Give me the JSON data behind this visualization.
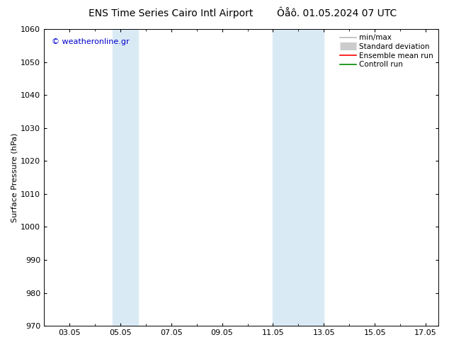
{
  "title_left": "ENS Time Series Cairo Intl Airport",
  "title_right": "Ôåô. 01.05.2024 07 UTC",
  "ylabel": "Surface Pressure (hPa)",
  "ylim": [
    970,
    1060
  ],
  "yticks": [
    970,
    980,
    990,
    1000,
    1010,
    1020,
    1030,
    1040,
    1050,
    1060
  ],
  "x_min": 2.0,
  "x_max": 17.5,
  "xtick_labels": [
    "03.05",
    "05.05",
    "07.05",
    "09.05",
    "11.05",
    "13.05",
    "15.05",
    "17.05"
  ],
  "xtick_positions_day": [
    3,
    5,
    7,
    9,
    11,
    13,
    15,
    17
  ],
  "shade_bands": [
    {
      "start_day": 4.7,
      "end_day": 5.7
    },
    {
      "start_day": 11.0,
      "end_day": 13.0
    }
  ],
  "shade_color": "#daeaf5",
  "watermark_text": "© weatheronline.gr",
  "watermark_color": "#0000cc",
  "legend_items": [
    {
      "label": "min/max",
      "color": "#bbbbbb",
      "lw": 1.2,
      "style": "line"
    },
    {
      "label": "Standard deviation",
      "color": "#cccccc",
      "lw": 8,
      "style": "box"
    },
    {
      "label": "Ensemble mean run",
      "color": "#ff0000",
      "lw": 1.2,
      "style": "line"
    },
    {
      "label": "Controll run",
      "color": "#008800",
      "lw": 1.2,
      "style": "line"
    }
  ],
  "bg_color": "#ffffff",
  "title_fontsize": 10,
  "tick_fontsize": 8,
  "ylabel_fontsize": 8,
  "legend_fontsize": 7.5,
  "watermark_fontsize": 8
}
